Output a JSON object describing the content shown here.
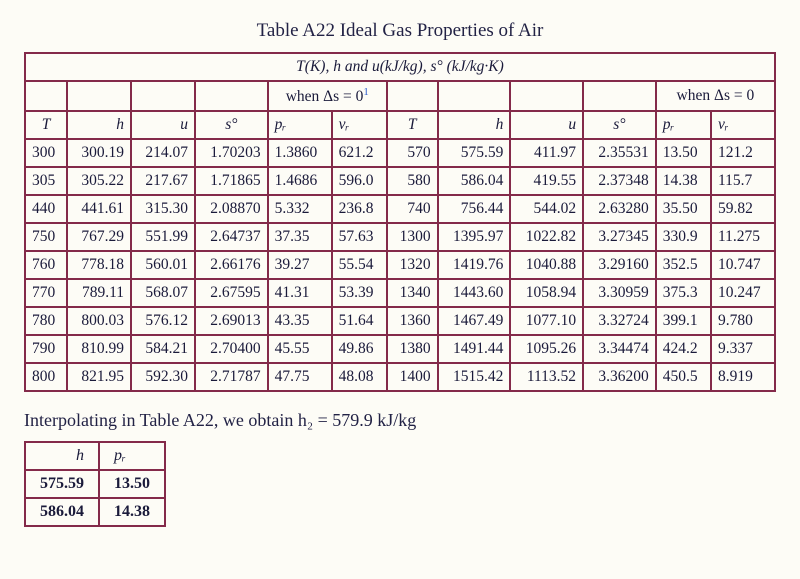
{
  "title": "Table A22 Ideal Gas Properties of Air",
  "header_line": "T(K), h and u(kJ/kg), s° (kJ/kg·K)",
  "delta_label_left": "when Δs = 0",
  "delta_label_right": "when Δs = 0",
  "columns": {
    "T": "T",
    "h": "h",
    "u": "u",
    "s": "s°",
    "pr": "pᵣ",
    "vr": "vᵣ"
  },
  "rows": [
    {
      "l": {
        "T": "300",
        "h": "300.19",
        "u": "214.07",
        "s": "1.70203",
        "pr": "1.3860",
        "vr": "621.2",
        "bold": [
          "T",
          "h",
          "pr"
        ]
      },
      "r": {
        "T": "570",
        "h": "575.59",
        "u": "411.97",
        "s": "2.35531",
        "pr": "13.50",
        "vr": "121.2",
        "bold": [
          "h",
          "pr"
        ]
      }
    },
    {
      "l": {
        "T": "305",
        "h": "305.22",
        "u": "217.67",
        "s": "1.71865",
        "pr": "1.4686",
        "vr": "596.0",
        "bold": []
      },
      "r": {
        "T": "580",
        "h": "586.04",
        "u": "419.55",
        "s": "2.37348",
        "pr": "14.38",
        "vr": "115.7",
        "bold": [
          "h",
          "pr"
        ]
      }
    },
    {
      "l": {
        "T": "440",
        "h": "441.61",
        "u": "315.30",
        "s": "2.08870",
        "pr": "5.332",
        "vr": "236.8",
        "bold": []
      },
      "r": {
        "T": "740",
        "h": "756.44",
        "u": "544.02",
        "s": "2.63280",
        "pr": "35.50",
        "vr": "59.82",
        "bold": []
      }
    },
    {
      "l": {
        "T": "750",
        "h": "767.29",
        "u": "551.99",
        "s": "2.64737",
        "pr": "37.35",
        "vr": "57.63",
        "bold": []
      },
      "r": {
        "T": "1300",
        "h": "1395.97",
        "u": "1022.82",
        "s": "3.27345",
        "pr": "330.9",
        "vr": "11.275",
        "bold": []
      }
    },
    {
      "l": {
        "T": "760",
        "h": "778.18",
        "u": "560.01",
        "s": "2.66176",
        "pr": "39.27",
        "vr": "55.54",
        "bold": []
      },
      "r": {
        "T": "1320",
        "h": "1419.76",
        "u": "1040.88",
        "s": "3.29160",
        "pr": "352.5",
        "vr": "10.747",
        "bold": []
      }
    },
    {
      "l": {
        "T": "770",
        "h": "789.11",
        "u": "568.07",
        "s": "2.67595",
        "pr": "41.31",
        "vr": "53.39",
        "bold": []
      },
      "r": {
        "T": "1340",
        "h": "1443.60",
        "u": "1058.94",
        "s": "3.30959",
        "pr": "375.3",
        "vr": "10.247",
        "bold": []
      }
    },
    {
      "l": {
        "T": "780",
        "h": "800.03",
        "u": "576.12",
        "s": "2.69013",
        "pr": "43.35",
        "vr": "51.64",
        "bold": [
          "T",
          "h",
          "pr"
        ]
      },
      "r": {
        "T": "1360",
        "h": "1467.49",
        "u": "1077.10",
        "s": "3.32724",
        "pr": "399.1",
        "vr": "9.780",
        "bold": []
      }
    },
    {
      "l": {
        "T": "790",
        "h": "810.99",
        "u": "584.21",
        "s": "2.70400",
        "pr": "45.55",
        "vr": "49.86",
        "bold": [
          "T",
          "h",
          "pr"
        ]
      },
      "r": {
        "T": "1380",
        "h": "1491.44",
        "u": "1095.26",
        "s": "3.34474",
        "pr": "424.2",
        "vr": "9.337",
        "bold": []
      }
    },
    {
      "l": {
        "T": "800",
        "h": "821.95",
        "u": "592.30",
        "s": "2.71787",
        "pr": "47.75",
        "vr": "48.08",
        "bold": []
      },
      "r": {
        "T": "1400",
        "h": "1515.42",
        "u": "1113.52",
        "s": "3.36200",
        "pr": "450.5",
        "vr": "8.919",
        "bold": [
          "T",
          "h",
          "pr"
        ]
      }
    }
  ],
  "note": "Interpolating in Table A22, we obtain h₂ = 579.9 kJ/kg",
  "small_table": {
    "columns": {
      "h": "h",
      "pr": "pᵣ"
    },
    "rows": [
      {
        "h": "575.59",
        "pr": "13.50"
      },
      {
        "h": "586.04",
        "pr": "14.38"
      }
    ]
  },
  "style": {
    "background": "#fdfcf6",
    "border_color": "#842a4a",
    "text_color": "#1a1a3a",
    "title_fontsize": 19,
    "body_fontsize": 15.5
  }
}
